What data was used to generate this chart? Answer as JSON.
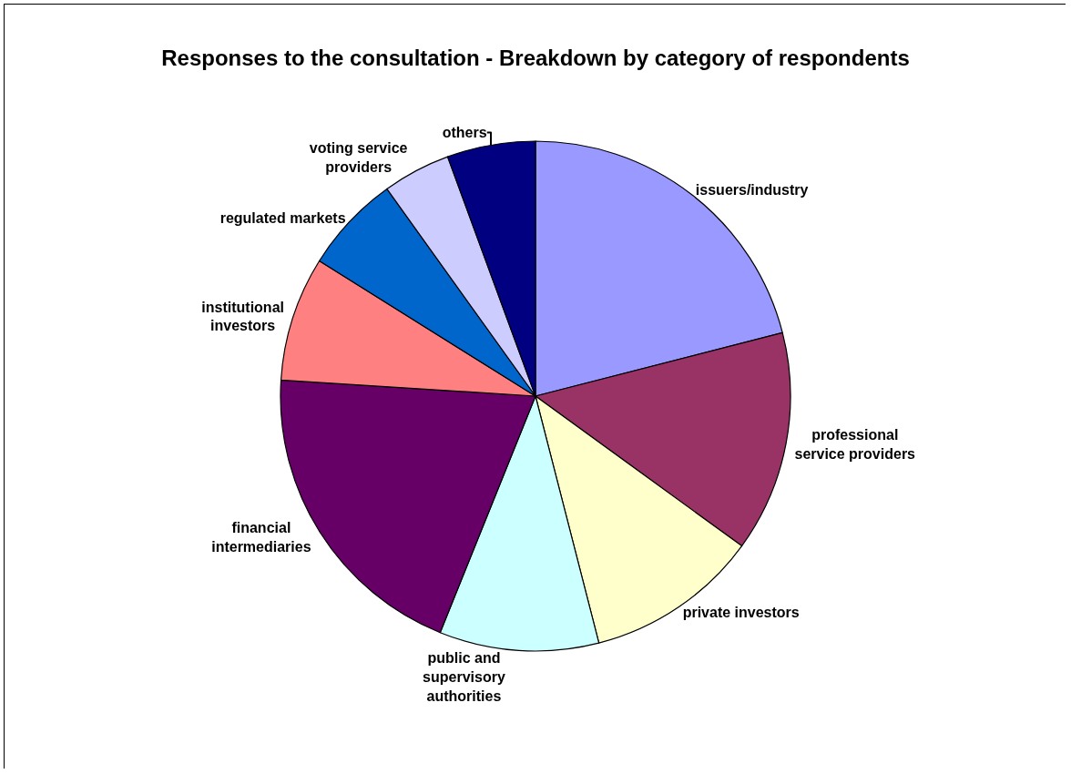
{
  "chart_data": {
    "type": "pie",
    "title": "Responses to the consultation - Breakdown by category of respondents",
    "categories": [
      "issuers/industry",
      "professional service providers",
      "private investors",
      "public and supervisory authorities",
      "financial intermediaries",
      "institutional investors",
      "regulated markets",
      "voting service providers",
      "others"
    ],
    "values": [
      21.0,
      14.0,
      11.0,
      10.1,
      19.9,
      7.9,
      6.2,
      4.3,
      5.6
    ],
    "colors": [
      "#9999ff",
      "#993366",
      "#ffffcc",
      "#ccffff",
      "#660066",
      "#ff8080",
      "#0066cc",
      "#ccccff",
      "#000080"
    ],
    "legend": false
  }
}
